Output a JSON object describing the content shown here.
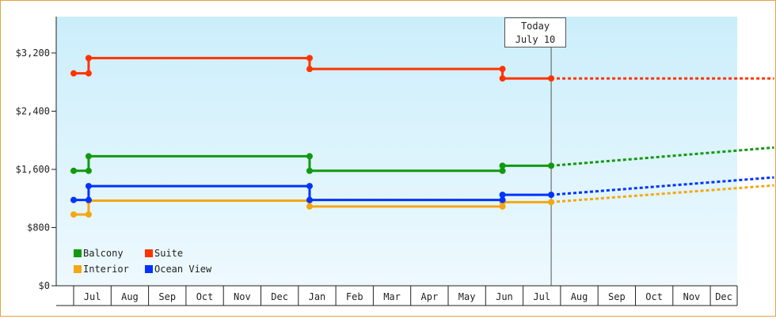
{
  "chart_data": {
    "type": "line",
    "today_label": [
      "Today",
      "July 10"
    ],
    "y_ticks": [
      "$0",
      "$800",
      "$1,600",
      "$2,400",
      "$3,200"
    ],
    "y_values": [
      0,
      800,
      1600,
      2400,
      3200
    ],
    "ylim": [
      0,
      3700
    ],
    "x_ticks": [
      "Jul",
      "Aug",
      "Sep",
      "Oct",
      "Nov",
      "Dec",
      "Jan",
      "Feb",
      "Mar",
      "Apr",
      "May",
      "Jun",
      "Jul",
      "Aug",
      "Sep",
      "Oct",
      "Nov",
      "Dec"
    ],
    "series": [
      {
        "name": "Balcony",
        "color": "#119911",
        "actual": [
          [
            0,
            1580
          ],
          [
            0.4,
            1580
          ],
          [
            0.4,
            1780
          ],
          [
            6.3,
            1780
          ],
          [
            6.3,
            1580
          ],
          [
            11.45,
            1580
          ],
          [
            11.45,
            1650
          ],
          [
            12.75,
            1650
          ]
        ],
        "forecast": [
          [
            12.75,
            1650
          ],
          [
            18.7,
            1900
          ]
        ]
      },
      {
        "name": "Interior",
        "color": "#f5a614",
        "actual": [
          [
            0,
            980
          ],
          [
            0.4,
            980
          ],
          [
            0.4,
            1170
          ],
          [
            6.3,
            1170
          ],
          [
            6.3,
            1090
          ],
          [
            11.45,
            1090
          ],
          [
            11.45,
            1150
          ],
          [
            12.75,
            1150
          ]
        ],
        "forecast": [
          [
            12.75,
            1150
          ],
          [
            18.7,
            1380
          ]
        ]
      },
      {
        "name": "Suite",
        "color": "#ff3300",
        "actual": [
          [
            0,
            2920
          ],
          [
            0.4,
            2920
          ],
          [
            0.4,
            3130
          ],
          [
            6.3,
            3130
          ],
          [
            6.3,
            2980
          ],
          [
            11.45,
            2980
          ],
          [
            11.45,
            2850
          ],
          [
            12.75,
            2850
          ]
        ],
        "forecast": [
          [
            12.75,
            2850
          ],
          [
            18.7,
            2850
          ]
        ]
      },
      {
        "name": "Ocean View",
        "color": "#0033ff",
        "actual": [
          [
            0,
            1180
          ],
          [
            0.4,
            1180
          ],
          [
            0.4,
            1370
          ],
          [
            6.3,
            1370
          ],
          [
            6.3,
            1180
          ],
          [
            11.45,
            1180
          ],
          [
            11.45,
            1250
          ],
          [
            12.75,
            1250
          ]
        ],
        "forecast": [
          [
            12.75,
            1250
          ],
          [
            18.7,
            1490
          ]
        ]
      }
    ],
    "legend": [
      {
        "name": "Balcony",
        "color": "#119911"
      },
      {
        "name": "Suite",
        "color": "#ff3300"
      },
      {
        "name": "Interior",
        "color": "#f5a614"
      },
      {
        "name": "Ocean View",
        "color": "#0033ff"
      }
    ],
    "today_x": 12.75,
    "grid": false,
    "legend_position": "bottom-left"
  }
}
